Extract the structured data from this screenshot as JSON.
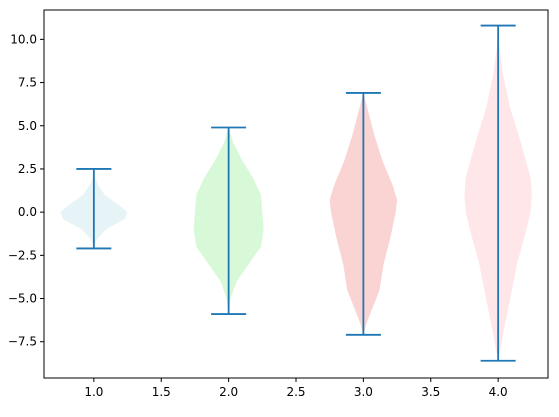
{
  "chart_data": {
    "type": "violin",
    "title": "",
    "xlabel": "",
    "ylabel": "",
    "xlim": [
      0.63,
      4.37
    ],
    "ylim": [
      -9.6,
      11.7
    ],
    "x_ticks": [
      1.0,
      1.5,
      2.0,
      2.5,
      3.0,
      3.5,
      4.0
    ],
    "x_tick_labels": [
      "1.0",
      "1.5",
      "2.0",
      "2.5",
      "3.0",
      "3.5",
      "4.0"
    ],
    "y_ticks": [
      -7.5,
      -5.0,
      -2.5,
      0.0,
      2.5,
      5.0,
      7.5,
      10.0
    ],
    "y_tick_labels": [
      "−7.5",
      "−5.0",
      "−2.5",
      "0.0",
      "2.5",
      "5.0",
      "7.5",
      "10.0"
    ],
    "grid": false,
    "stat_line_color": "#1f77b4",
    "violins": [
      {
        "position": 1.0,
        "min": -2.1,
        "max": 2.5,
        "color": "#add8e6",
        "opacity": 0.3,
        "profile": [
          [
            -2.1,
            0.0
          ],
          [
            -1.6,
            0.02
          ],
          [
            -1.0,
            0.09
          ],
          [
            -0.4,
            0.23
          ],
          [
            0.0,
            0.25
          ],
          [
            0.5,
            0.17
          ],
          [
            1.0,
            0.08
          ],
          [
            1.6,
            0.03
          ],
          [
            2.0,
            0.01
          ],
          [
            2.5,
            0.0
          ]
        ]
      },
      {
        "position": 2.0,
        "min": -5.9,
        "max": 4.9,
        "color": "#90ee90",
        "opacity": 0.35,
        "profile": [
          [
            -5.9,
            0.0
          ],
          [
            -5.0,
            0.015
          ],
          [
            -4.0,
            0.06
          ],
          [
            -3.0,
            0.15
          ],
          [
            -2.0,
            0.24
          ],
          [
            -1.0,
            0.26
          ],
          [
            0.0,
            0.25
          ],
          [
            1.0,
            0.24
          ],
          [
            2.0,
            0.18
          ],
          [
            3.0,
            0.1
          ],
          [
            4.0,
            0.035
          ],
          [
            4.9,
            0.0
          ]
        ]
      },
      {
        "position": 3.0,
        "min": -7.1,
        "max": 6.9,
        "color": "#f08080",
        "opacity": 0.35,
        "profile": [
          [
            -7.1,
            0.0
          ],
          [
            -6.5,
            0.02
          ],
          [
            -5.5,
            0.07
          ],
          [
            -4.5,
            0.12
          ],
          [
            -3.0,
            0.15
          ],
          [
            -1.5,
            0.2
          ],
          [
            0.0,
            0.24
          ],
          [
            0.7,
            0.25
          ],
          [
            1.5,
            0.22
          ],
          [
            3.0,
            0.14
          ],
          [
            4.5,
            0.08
          ],
          [
            6.0,
            0.03
          ],
          [
            6.9,
            0.0
          ]
        ]
      },
      {
        "position": 4.0,
        "min": -8.6,
        "max": 10.8,
        "color": "#ffb6c1",
        "opacity": 0.35,
        "profile": [
          [
            -8.6,
            0.0
          ],
          [
            -8.0,
            0.015
          ],
          [
            -6.5,
            0.05
          ],
          [
            -5.0,
            0.09
          ],
          [
            -3.0,
            0.14
          ],
          [
            -1.0,
            0.21
          ],
          [
            0.0,
            0.24
          ],
          [
            1.0,
            0.25
          ],
          [
            2.0,
            0.24
          ],
          [
            4.0,
            0.17
          ],
          [
            6.0,
            0.09
          ],
          [
            8.0,
            0.035
          ],
          [
            9.5,
            0.01
          ],
          [
            10.8,
            0.0
          ]
        ]
      }
    ]
  }
}
